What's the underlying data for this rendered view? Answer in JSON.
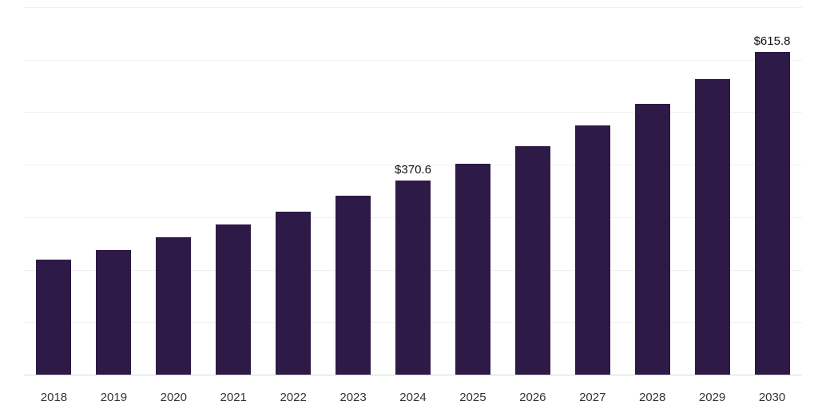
{
  "chart_data": {
    "type": "bar",
    "title": "",
    "xlabel": "",
    "ylabel": "",
    "categories": [
      "2018",
      "2019",
      "2020",
      "2021",
      "2022",
      "2023",
      "2024",
      "2025",
      "2026",
      "2027",
      "2028",
      "2029",
      "2030"
    ],
    "values": [
      221,
      239,
      264,
      288,
      312,
      342,
      370.6,
      403,
      437,
      476,
      518,
      565,
      615.8
    ],
    "annotations": [
      {
        "category": "2024",
        "text": "$370.6"
      },
      {
        "category": "2030",
        "text": "$615.8"
      }
    ],
    "ylim": [
      0,
      700
    ],
    "gridline_step": 100,
    "grid": "horizontal",
    "legend": "none",
    "bar_color": "#2e1a47",
    "gridline_color": "#f0f0f0",
    "axis_line_color": "#d9d9d9",
    "label_color": "#333333",
    "value_label_color": "#111111"
  }
}
